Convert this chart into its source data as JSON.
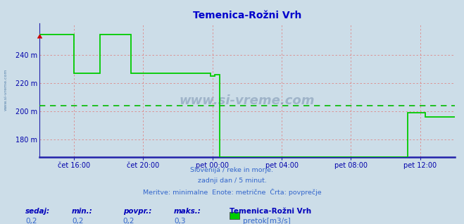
{
  "title": "Temenica-Rožni Vrh",
  "title_color": "#0000cc",
  "bg_color": "#ccdde8",
  "plot_bg_color": "#ccdde8",
  "line_color": "#00cc00",
  "avg_line_color": "#00bb00",
  "avg_value": 204,
  "ylim": [
    168,
    262
  ],
  "yticks": [
    180,
    200,
    220,
    240
  ],
  "ylabel_color": "#0000aa",
  "xlabel_color": "#0000aa",
  "grid_color": "#dd8888",
  "axis_color": "#2222aa",
  "text_color": "#3366cc",
  "footer_lines": [
    "Slovenija / reke in morje.",
    "zadnji dan / 5 minut.",
    "Meritve: minimalne  Enote: metrične  Črta: povprečje"
  ],
  "bottom_labels": [
    "sedaj:",
    "min.:",
    "povpr.:",
    "maks.:"
  ],
  "bottom_values": [
    "0,2",
    "0,2",
    "0,2",
    "0,3"
  ],
  "station_name": "Temenica-Rožni Vrh",
  "legend_label": "pretok[m3/s]",
  "xtick_labels": [
    "čet 16:00",
    "čet 20:00",
    "pet 00:00",
    "pet 04:00",
    "pet 08:00",
    "pet 12:00"
  ],
  "xtick_positions": [
    2,
    6,
    10,
    14,
    18,
    22
  ],
  "xlim": [
    0,
    24
  ],
  "watermark": "www.si-vreme.com",
  "segment_data": [
    [
      0.0,
      254
    ],
    [
      2.0,
      254
    ],
    [
      2.0,
      227
    ],
    [
      3.5,
      227
    ],
    [
      3.5,
      254
    ],
    [
      5.3,
      254
    ],
    [
      5.3,
      227
    ],
    [
      9.9,
      227
    ],
    [
      9.9,
      225
    ],
    [
      10.15,
      225
    ],
    [
      10.15,
      226
    ],
    [
      10.4,
      226
    ],
    [
      10.4,
      168
    ],
    [
      21.3,
      168
    ],
    [
      21.3,
      199
    ],
    [
      22.3,
      199
    ],
    [
      22.3,
      196
    ],
    [
      24.0,
      196
    ]
  ]
}
